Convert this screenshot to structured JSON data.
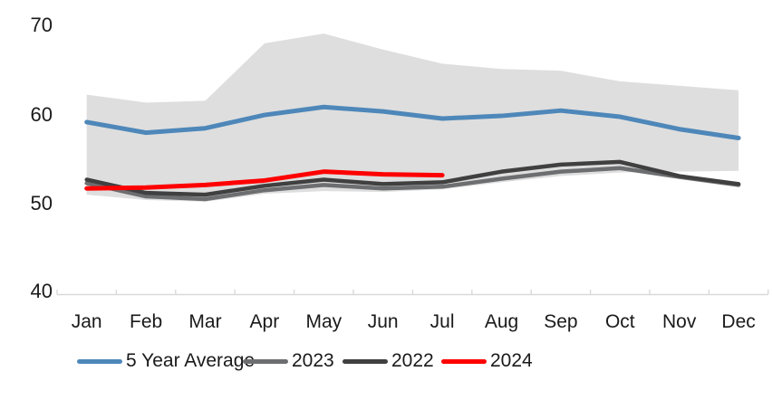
{
  "chart_data": {
    "type": "line",
    "title": "",
    "xlabel": "",
    "ylabel": "",
    "categories": [
      "Jan",
      "Feb",
      "Mar",
      "Apr",
      "May",
      "Jun",
      "Jul",
      "Aug",
      "Sep",
      "Oct",
      "Nov",
      "Dec"
    ],
    "y_ticks": [
      40,
      50,
      60,
      70
    ],
    "ylim": [
      40,
      70
    ],
    "grid": false,
    "legend_position": "bottom",
    "axis_color": "#D9D9D9",
    "band": {
      "name": "5-year-range-band",
      "color": "#DEDEDE",
      "top": [
        62.2,
        61.3,
        61.5,
        68.0,
        69.1,
        67.3,
        65.7,
        65.1,
        64.9,
        63.7,
        63.2,
        62.7
      ],
      "bottom": [
        50.9,
        50.3,
        50.1,
        51.0,
        51.3,
        51.2,
        51.5,
        52.3,
        53.0,
        53.4,
        53.5,
        53.6
      ]
    },
    "series": [
      {
        "name": "5 Year Average",
        "color": "#4E87B9",
        "stroke_width": 5,
        "values": [
          59.1,
          57.9,
          58.4,
          59.9,
          60.8,
          60.3,
          59.5,
          59.8,
          60.4,
          59.7,
          58.3,
          57.3
        ]
      },
      {
        "name": "2023",
        "color": "#6D6E70",
        "stroke_width": 4.5,
        "values": [
          52.2,
          50.7,
          50.4,
          51.4,
          52.0,
          51.6,
          51.8,
          52.7,
          53.5,
          53.9,
          52.9,
          52.0
        ]
      },
      {
        "name": "2022",
        "color": "#404041",
        "stroke_width": 4.5,
        "values": [
          52.6,
          51.1,
          50.9,
          51.9,
          52.6,
          52.1,
          52.3,
          53.5,
          54.3,
          54.6,
          53.0,
          52.1
        ]
      },
      {
        "name": "2024",
        "color": "#FF0000",
        "stroke_width": 5,
        "values": [
          51.6,
          51.7,
          52.0,
          52.5,
          53.5,
          53.2,
          53.1
        ]
      }
    ]
  }
}
